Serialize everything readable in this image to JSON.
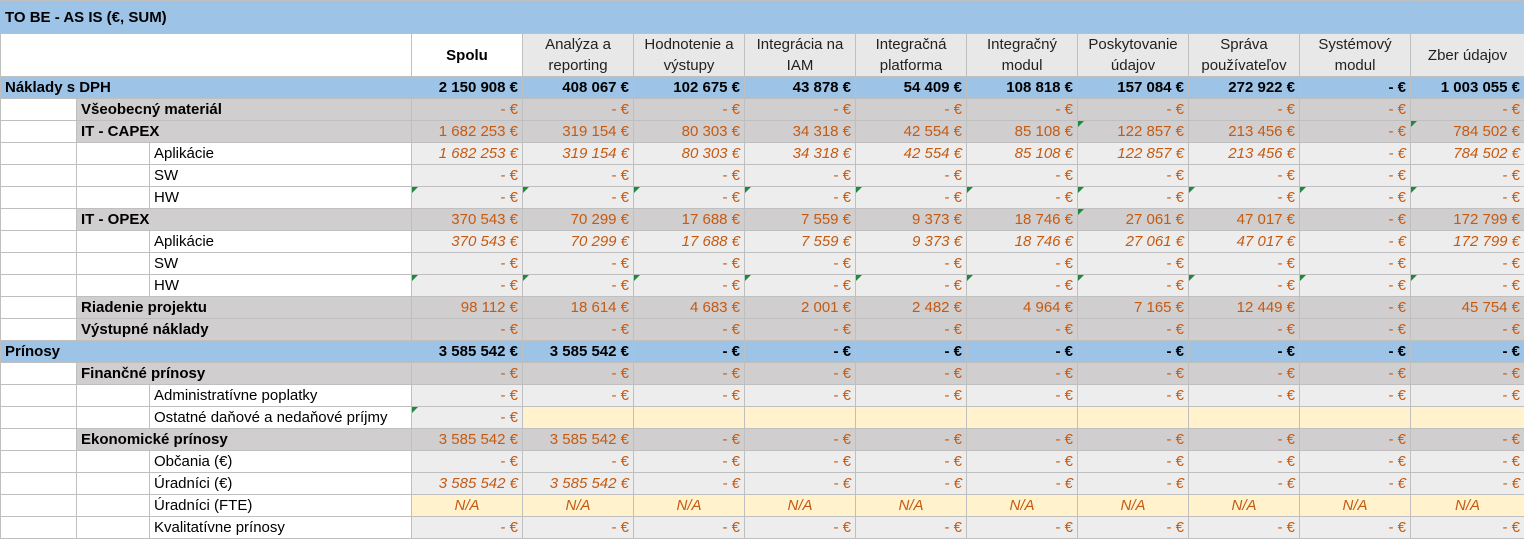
{
  "title": "TO BE - AS IS (€, SUM)",
  "columns": [
    "Spolu",
    "Analýza a reporting",
    "Hodnotenie a výstupy",
    "Integrácia na IAM",
    "Integračná platforma",
    "Integračný modul",
    "Poskytovanie údajov",
    "Správa používateľov",
    "Systémový modul",
    "Zber údajov"
  ],
  "rows": [
    {
      "label": "Náklady s DPH",
      "level": 0,
      "style": "blue",
      "values": [
        "2 150 908 €",
        "408 067 €",
        "102 675 €",
        "43 878 €",
        "54 409 €",
        "108 818 €",
        "157 084 €",
        "272 922 €",
        "- €",
        "1 003 055 €"
      ]
    },
    {
      "label": "Všeobecný materiál",
      "level": 1,
      "style": "grey",
      "values": [
        "- €",
        "- €",
        "- €",
        "- €",
        "- €",
        "- €",
        "- €",
        "- €",
        "- €",
        "- €"
      ]
    },
    {
      "label": "IT - CAPEX",
      "level": 1,
      "style": "grey",
      "values": [
        "1 682 253 €",
        "319 154 €",
        "80 303 €",
        "34 318 €",
        "42 554 €",
        "85 108 €",
        "122 857 €",
        "213 456 €",
        "- €",
        "784 502 €"
      ]
    },
    {
      "label": "Aplikácie",
      "level": 2,
      "style": "light",
      "italic": true,
      "values": [
        "1 682 253 €",
        "319 154 €",
        "80 303 €",
        "34 318 €",
        "42 554 €",
        "85 108 €",
        "122 857 €",
        "213 456 €",
        "- €",
        "784 502 €"
      ]
    },
    {
      "label": "SW",
      "level": 2,
      "style": "light",
      "values": [
        "- €",
        "- €",
        "- €",
        "- €",
        "- €",
        "- €",
        "- €",
        "- €",
        "- €",
        "- €"
      ]
    },
    {
      "label": "HW",
      "level": 2,
      "style": "light",
      "values": [
        "- €",
        "- €",
        "- €",
        "- €",
        "- €",
        "- €",
        "- €",
        "- €",
        "- €",
        "- €"
      ]
    },
    {
      "label": "IT - OPEX",
      "level": 1,
      "style": "grey",
      "values": [
        "370 543 €",
        "70 299 €",
        "17 688 €",
        "7 559 €",
        "9 373 €",
        "18 746 €",
        "27 061 €",
        "47 017 €",
        "- €",
        "172 799 €"
      ]
    },
    {
      "label": "Aplikácie",
      "level": 2,
      "style": "light",
      "italic": true,
      "values": [
        "370 543 €",
        "70 299 €",
        "17 688 €",
        "7 559 €",
        "9 373 €",
        "18 746 €",
        "27 061 €",
        "47 017 €",
        "- €",
        "172 799 €"
      ]
    },
    {
      "label": "SW",
      "level": 2,
      "style": "light",
      "values": [
        "- €",
        "- €",
        "- €",
        "- €",
        "- €",
        "- €",
        "- €",
        "- €",
        "- €",
        "- €"
      ]
    },
    {
      "label": "HW",
      "level": 2,
      "style": "light",
      "values": [
        "- €",
        "- €",
        "- €",
        "- €",
        "- €",
        "- €",
        "- €",
        "- €",
        "- €",
        "- €"
      ]
    },
    {
      "label": "Riadenie projektu",
      "level": 1,
      "style": "grey",
      "values": [
        "98 112 €",
        "18 614 €",
        "4 683 €",
        "2 001 €",
        "2 482 €",
        "4 964 €",
        "7 165 €",
        "12 449 €",
        "- €",
        "45 754 €"
      ]
    },
    {
      "label": "Výstupné náklady",
      "level": 1,
      "style": "grey",
      "values": [
        "- €",
        "- €",
        "- €",
        "- €",
        "- €",
        "- €",
        "- €",
        "- €",
        "- €",
        "- €"
      ]
    },
    {
      "label": "Prínosy",
      "level": 0,
      "style": "blue",
      "values": [
        "3 585 542 €",
        "3 585 542 €",
        "- €",
        "- €",
        "- €",
        "- €",
        "- €",
        "- €",
        "- €",
        "- €"
      ]
    },
    {
      "label": "Finančné prínosy",
      "level": 1,
      "style": "grey",
      "values": [
        "- €",
        "- €",
        "- €",
        "- €",
        "- €",
        "- €",
        "- €",
        "- €",
        "- €",
        "- €"
      ]
    },
    {
      "label": "Administratívne poplatky",
      "level": 2,
      "style": "light",
      "values": [
        "- €",
        "- €",
        "- €",
        "- €",
        "- €",
        "- €",
        "- €",
        "- €",
        "- €",
        "- €"
      ]
    },
    {
      "label": "Ostatné daňové a nedaňové príjmy",
      "level": 2,
      "style": "light",
      "cream_after_first": true,
      "values": [
        "- €",
        "",
        "",
        "",
        "",
        "",
        "",
        "",
        "",
        ""
      ]
    },
    {
      "label": "Ekonomické prínosy",
      "level": 1,
      "style": "grey",
      "values": [
        "3 585 542 €",
        "3 585 542 €",
        "- €",
        "- €",
        "- €",
        "- €",
        "- €",
        "- €",
        "- €",
        "- €"
      ]
    },
    {
      "label": "Občania (€)",
      "level": 2,
      "style": "light",
      "values": [
        "- €",
        "- €",
        "- €",
        "- €",
        "- €",
        "- €",
        "- €",
        "- €",
        "- €",
        "- €"
      ]
    },
    {
      "label": "Úradníci (€)",
      "level": 2,
      "style": "light",
      "italic": true,
      "values": [
        "3 585 542 €",
        "3 585 542 €",
        "- €",
        "- €",
        "- €",
        "- €",
        "- €",
        "- €",
        "- €",
        "- €"
      ]
    },
    {
      "label": "Úradníci (FTE)",
      "level": 2,
      "style": "light",
      "cream": true,
      "centered": true,
      "italic": true,
      "values": [
        "N/A",
        "N/A",
        "N/A",
        "N/A",
        "N/A",
        "N/A",
        "N/A",
        "N/A",
        "N/A",
        "N/A"
      ]
    },
    {
      "label": "Kvalitatívne prínosy",
      "level": 2,
      "style": "light",
      "values": [
        "- €",
        "- €",
        "- €",
        "- €",
        "- €",
        "- €",
        "- €",
        "- €",
        "- €",
        "- €"
      ]
    }
  ]
}
